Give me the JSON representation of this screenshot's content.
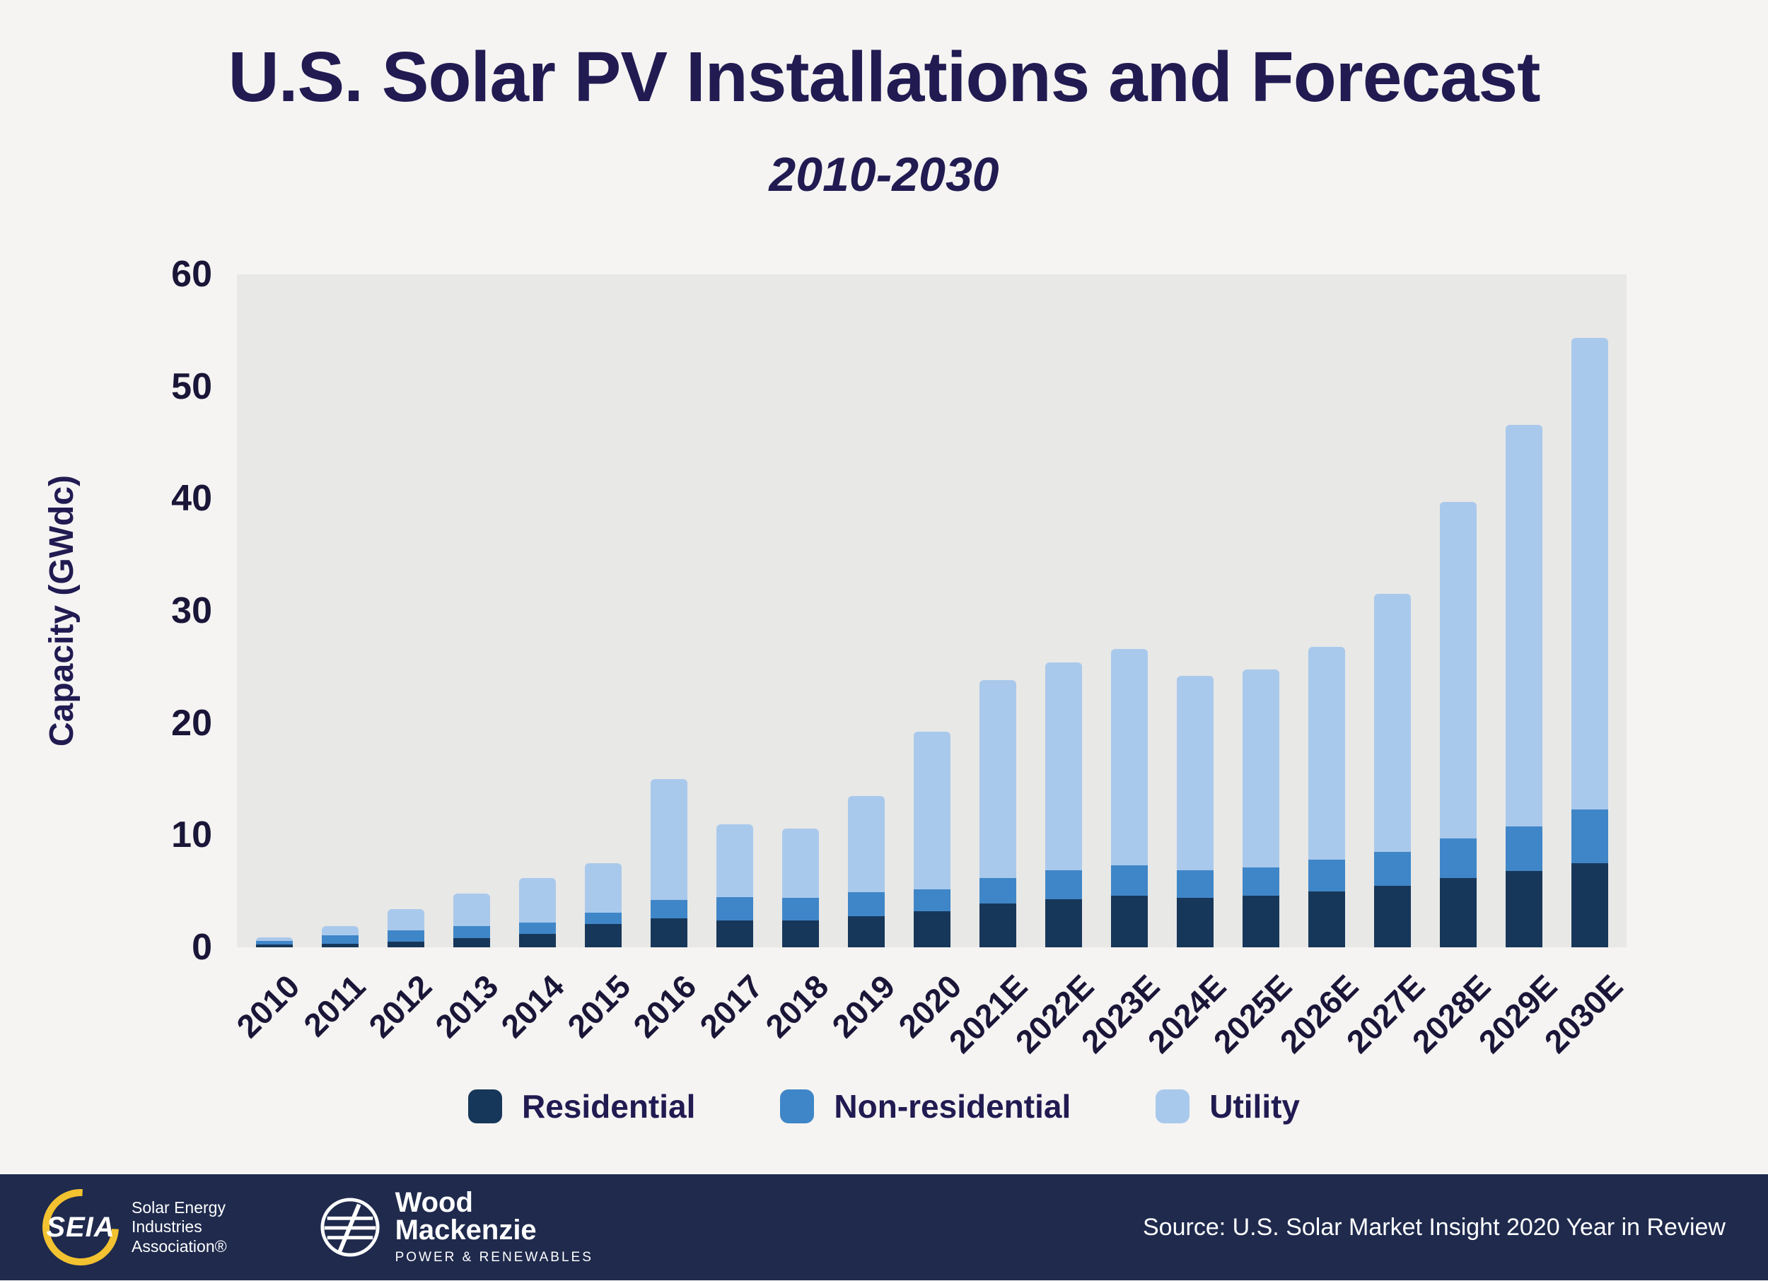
{
  "header": {
    "title": "U.S. Solar PV Installations and Forecast",
    "subtitle": "2010-2030"
  },
  "chart_data": {
    "type": "bar",
    "stacked": true,
    "title": "U.S. Solar PV Installations and Forecast",
    "subtitle": "2010-2030",
    "xlabel": "",
    "ylabel": "Capacity (GWdc)",
    "ylim": [
      0,
      60
    ],
    "yticks": [
      0,
      10,
      20,
      30,
      40,
      50,
      60
    ],
    "grid": false,
    "legend_position": "bottom",
    "plot_background": "#e8e8e6",
    "categories": [
      "2010",
      "2011",
      "2012",
      "2013",
      "2014",
      "2015",
      "2016",
      "2017",
      "2018",
      "2019",
      "2020",
      "2021E",
      "2022E",
      "2023E",
      "2024E",
      "2025E",
      "2026E",
      "2027E",
      "2028E",
      "2029E",
      "2030E"
    ],
    "series": [
      {
        "name": "Residential",
        "color": "#17375a",
        "values": [
          0.25,
          0.3,
          0.5,
          0.8,
          1.2,
          2.1,
          2.6,
          2.4,
          2.4,
          2.8,
          3.2,
          3.9,
          4.3,
          4.6,
          4.4,
          4.6,
          5.0,
          5.5,
          6.2,
          6.8,
          7.5
        ]
      },
      {
        "name": "Non-residential",
        "color": "#3f86c8",
        "values": [
          0.3,
          0.8,
          1.0,
          1.1,
          1.0,
          1.0,
          1.6,
          2.1,
          2.0,
          2.1,
          2.0,
          2.3,
          2.6,
          2.7,
          2.5,
          2.5,
          2.8,
          3.0,
          3.5,
          4.0,
          4.8
        ]
      },
      {
        "name": "Utility",
        "color": "#a9c9ec",
        "values": [
          0.3,
          0.8,
          1.9,
          2.9,
          4.0,
          4.4,
          10.8,
          6.5,
          6.2,
          8.6,
          14.0,
          17.6,
          18.5,
          19.3,
          17.3,
          17.7,
          19.0,
          23.0,
          30.0,
          35.8,
          42.0
        ]
      }
    ],
    "totals": [
      0.85,
      1.9,
      3.4,
      4.8,
      6.2,
      7.5,
      15.0,
      11.0,
      10.6,
      13.5,
      19.2,
      23.8,
      25.4,
      26.6,
      24.2,
      24.8,
      26.8,
      31.5,
      39.7,
      46.6,
      54.3
    ]
  },
  "legend": {
    "items": [
      "Residential",
      "Non-residential",
      "Utility"
    ]
  },
  "footer": {
    "seia": {
      "name": "SEIA",
      "caption_line1": "Solar Energy",
      "caption_line2": "Industries",
      "caption_line3": "Association®"
    },
    "woodmac": {
      "name_line1": "Wood",
      "name_line2": "Mackenzie",
      "tagline": "POWER & RENEWABLES"
    },
    "source": "Source: U.S. Solar Market Insight 2020 Year in Review",
    "background": "#1f2a4d"
  },
  "colors": {
    "page_background": "#f5f4f2",
    "title_text": "#211b52",
    "seia_yellow": "#f2c230"
  }
}
